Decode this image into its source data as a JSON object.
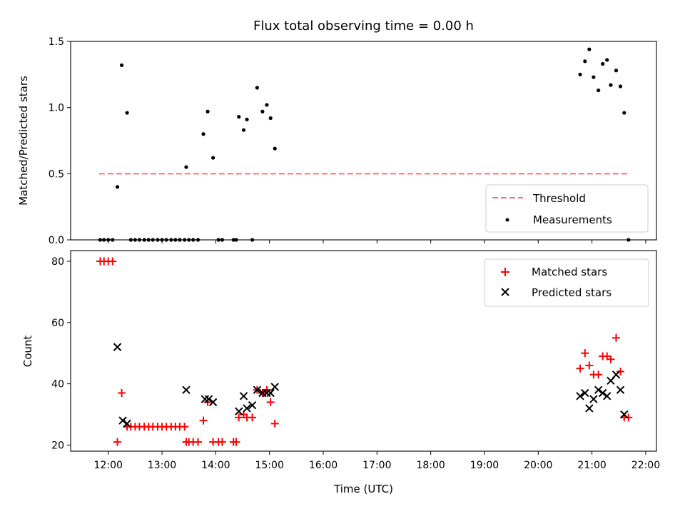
{
  "chart_data": [
    {
      "type": "scatter",
      "title": "Flux total observing time = 0.00 h",
      "xlabel": "",
      "ylabel": "Matched/Predicted stars",
      "xlim": [
        11.3,
        22.2
      ],
      "ylim": [
        0,
        1.5
      ],
      "yticks": [
        0.0,
        0.5,
        1.0,
        1.5
      ],
      "ytick_labels": [
        "0.0",
        "0.5",
        "1.0",
        "1.5"
      ],
      "legend": {
        "placement": "lower-right",
        "entries": [
          "Threshold",
          "Measurements"
        ]
      },
      "threshold": {
        "name": "Threshold",
        "y": 0.5,
        "x_range": [
          11.83,
          21.67
        ],
        "color": "#ff7070",
        "style": "dashed"
      },
      "series": [
        {
          "name": "Measurements",
          "color": "#000000",
          "marker": "dot",
          "x": [
            11.85,
            11.92,
            12.0,
            12.08,
            12.17,
            12.25,
            12.35,
            12.42,
            12.5,
            12.58,
            12.67,
            12.75,
            12.83,
            12.92,
            13.0,
            13.08,
            13.17,
            13.25,
            13.33,
            13.42,
            13.45,
            13.5,
            13.58,
            13.67,
            13.77,
            13.85,
            13.95,
            14.05,
            14.12,
            14.33,
            14.38,
            14.43,
            14.52,
            14.58,
            14.68,
            14.77,
            14.87,
            14.95,
            15.02,
            15.1,
            20.78,
            20.87,
            20.95,
            21.03,
            21.12,
            21.2,
            21.28,
            21.35,
            21.45,
            21.53,
            21.6,
            21.68
          ],
          "y": [
            0.0,
            0.0,
            0.0,
            0.0,
            0.4,
            1.32,
            0.96,
            0.0,
            0.0,
            0.0,
            0.0,
            0.0,
            0.0,
            0.0,
            0.0,
            0.0,
            0.0,
            0.0,
            0.0,
            0.0,
            0.55,
            0.0,
            0.0,
            0.0,
            0.8,
            0.97,
            0.62,
            0.0,
            0.0,
            0.0,
            0.0,
            0.93,
            0.83,
            0.91,
            0.0,
            1.15,
            0.97,
            1.02,
            0.92,
            0.69,
            1.25,
            1.35,
            1.44,
            1.23,
            1.13,
            1.33,
            1.36,
            1.17,
            1.28,
            1.16,
            0.96,
            0.0
          ]
        }
      ]
    },
    {
      "type": "scatter",
      "xlabel": "Time (UTC)",
      "ylabel": "Count",
      "xlim": [
        11.3,
        22.2
      ],
      "ylim": [
        18,
        83.5
      ],
      "yticks": [
        20,
        40,
        60,
        80
      ],
      "ytick_labels": [
        "20",
        "40",
        "60",
        "80"
      ],
      "xticks": [
        12,
        13,
        14,
        15,
        16,
        17,
        18,
        19,
        20,
        21,
        22
      ],
      "xtick_labels": [
        "12:00",
        "13:00",
        "14:00",
        "15:00",
        "16:00",
        "17:00",
        "18:00",
        "19:00",
        "20:00",
        "21:00",
        "22:00"
      ],
      "legend": {
        "placement": "upper-right",
        "entries": [
          "Matched stars",
          "Predicted stars"
        ]
      },
      "series": [
        {
          "name": "Matched stars",
          "color": "#ff0000",
          "marker": "plus",
          "x": [
            11.85,
            11.92,
            12.0,
            12.08,
            12.17,
            12.25,
            12.35,
            12.42,
            12.5,
            12.58,
            12.67,
            12.75,
            12.83,
            12.92,
            13.0,
            13.08,
            13.17,
            13.25,
            13.33,
            13.42,
            13.45,
            13.5,
            13.58,
            13.67,
            13.77,
            13.85,
            13.95,
            14.05,
            14.12,
            14.33,
            14.38,
            14.43,
            14.52,
            14.58,
            14.68,
            14.77,
            14.87,
            14.95,
            15.02,
            15.1,
            20.78,
            20.87,
            20.95,
            21.03,
            21.12,
            21.2,
            21.28,
            21.35,
            21.45,
            21.53,
            21.6,
            21.68
          ],
          "y": [
            80,
            80,
            80,
            80,
            21,
            37,
            26,
            26,
            26,
            26,
            26,
            26,
            26,
            26,
            26,
            26,
            26,
            26,
            26,
            26,
            21,
            21,
            21,
            21,
            28,
            34,
            21,
            21,
            21,
            21,
            21,
            29,
            30,
            29,
            29,
            38,
            37,
            38,
            34,
            27,
            45,
            50,
            46,
            43,
            43,
            49,
            49,
            48,
            55,
            44,
            29,
            29
          ]
        },
        {
          "name": "Predicted stars",
          "color": "#000000",
          "marker": "x",
          "x": [
            12.17,
            12.27,
            12.35,
            13.45,
            13.8,
            13.87,
            13.95,
            14.43,
            14.52,
            14.58,
            14.68,
            14.77,
            14.87,
            14.95,
            15.02,
            15.1,
            20.78,
            20.87,
            20.95,
            21.03,
            21.12,
            21.2,
            21.28,
            21.35,
            21.45,
            21.53,
            21.6
          ],
          "y": [
            52,
            28,
            27,
            38,
            35,
            35,
            34,
            31,
            36,
            32,
            33,
            38,
            37,
            37,
            37,
            39,
            36,
            37,
            32,
            35,
            38,
            37,
            36,
            41,
            43,
            38,
            30
          ]
        }
      ]
    }
  ]
}
